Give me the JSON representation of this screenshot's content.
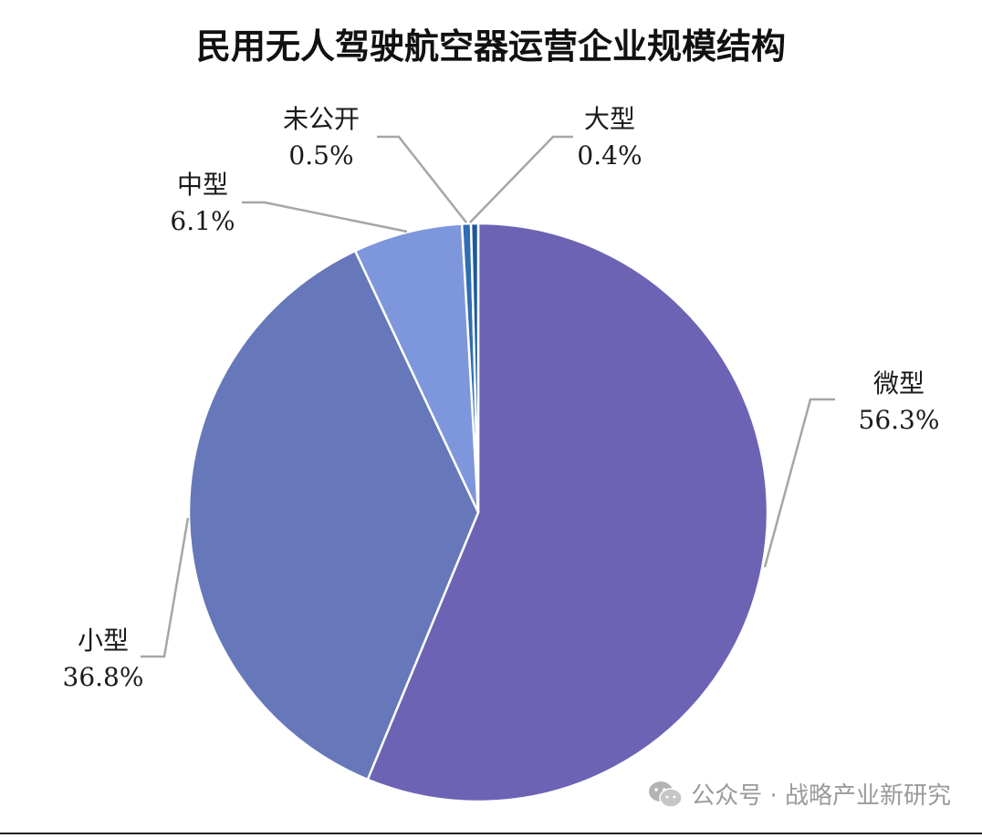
{
  "chart_data": {
    "type": "pie",
    "title": "民用无人驾驶航空器运营企业规模结构",
    "slices": [
      {
        "label": "微型",
        "value": 56.3,
        "value_label": "56.3%",
        "color": "#6C63B5"
      },
      {
        "label": "小型",
        "value": 36.8,
        "value_label": "36.8%",
        "color": "#6678B9"
      },
      {
        "label": "中型",
        "value": 6.1,
        "value_label": "6.1%",
        "color": "#7E96DB"
      },
      {
        "label": "未公开",
        "value": 0.5,
        "value_label": "0.5%",
        "color": "#2F6DB4"
      },
      {
        "label": "大型",
        "value": 0.4,
        "value_label": "0.4%",
        "color": "#1F5A98"
      }
    ],
    "start_angle": "12 o'clock",
    "direction": "clockwise",
    "legend": "none"
  },
  "watermark": {
    "icon": "wechat-icon",
    "text": "公众号 · 战略产业新研究"
  }
}
